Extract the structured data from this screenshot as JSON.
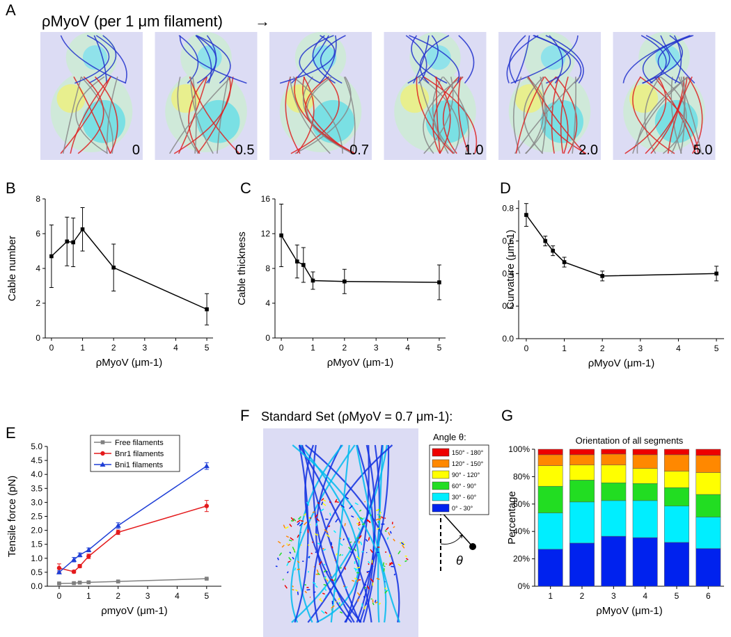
{
  "figure": {
    "panel_A": {
      "letter": "A",
      "title": "ρMyoV (per 1 μm filament)",
      "arrow": "→",
      "image_labels": [
        "0",
        "0.5",
        "0.7",
        "1.0",
        "2.0",
        "5.0"
      ]
    },
    "panel_F": {
      "letter": "F",
      "title": "Standard Set (ρMyoV = 0.7 μm-1):",
      "angle_symbol": "θ"
    }
  },
  "chart_data": [
    {
      "type": "line",
      "panel": "B",
      "x_label": "ρMyoV (μm-1)",
      "y_label": "Cable number",
      "x": [
        0,
        0.5,
        0.7,
        1,
        2,
        5
      ],
      "values": [
        4.7,
        5.55,
        5.5,
        6.25,
        4.05,
        1.65
      ],
      "errors": [
        1.8,
        1.4,
        1.4,
        1.25,
        1.35,
        0.9
      ],
      "color": "#000000",
      "marker": "square",
      "xlim": [
        -0.2,
        5.2
      ],
      "xticks": [
        0,
        1,
        2,
        3,
        4,
        5
      ],
      "ylim": [
        0,
        8
      ],
      "yticks": [
        0,
        2,
        4,
        6,
        8
      ]
    },
    {
      "type": "line",
      "panel": "C",
      "x_label": "ρMyoV (μm-1)",
      "y_label": "Cable thickness",
      "x": [
        0,
        0.5,
        0.7,
        1,
        2,
        5
      ],
      "values": [
        11.8,
        8.8,
        8.4,
        6.6,
        6.5,
        6.4
      ],
      "errors": [
        3.6,
        1.9,
        2.0,
        1.0,
        1.4,
        2.0
      ],
      "color": "#000000",
      "marker": "square",
      "xlim": [
        -0.2,
        5.2
      ],
      "xticks": [
        0,
        1,
        2,
        3,
        4,
        5
      ],
      "ylim": [
        0,
        16
      ],
      "yticks": [
        0,
        4,
        8,
        12,
        16
      ]
    },
    {
      "type": "line",
      "panel": "D",
      "x_label": "ρMyoV (μm-1)",
      "y_label": "Curvature (μm-1)",
      "x": [
        0,
        0.5,
        0.7,
        1,
        2,
        5
      ],
      "values": [
        0.76,
        0.6,
        0.54,
        0.47,
        0.385,
        0.4
      ],
      "errors": [
        0.07,
        0.03,
        0.03,
        0.03,
        0.03,
        0.045
      ],
      "color": "#000000",
      "marker": "square",
      "xlim": [
        -0.2,
        5.2
      ],
      "xticks": [
        0,
        1,
        2,
        3,
        4,
        5
      ],
      "ylim": [
        0,
        0.85
      ],
      "yticks": [
        {
          "value": 0,
          "label": "0.0"
        },
        0.2,
        0.4,
        0.6,
        0.8
      ]
    },
    {
      "type": "line",
      "panel": "E",
      "x_label": "ρmyoV (μm-1)",
      "y_label": "Tensile force (pN)",
      "legend": "upper left",
      "x": [
        0,
        0.5,
        0.7,
        1,
        2,
        5
      ],
      "series": [
        {
          "name": "Free filaments",
          "color": "#808080",
          "marker": "square",
          "values": [
            0.1,
            0.11,
            0.13,
            0.14,
            0.17,
            0.27
          ],
          "errors": [
            0.02,
            0.02,
            0.02,
            0.02,
            0.02,
            0.02
          ]
        },
        {
          "name": "Bnr1 filaments",
          "color": "#e41a1c",
          "marker": "circle",
          "values": [
            0.65,
            0.52,
            0.72,
            1.07,
            1.93,
            2.87
          ],
          "errors": [
            0.15,
            0.05,
            0.06,
            0.08,
            0.08,
            0.2
          ]
        },
        {
          "name": "Bni1 filaments",
          "color": "#1f3fd6",
          "marker": "triangle",
          "values": [
            0.5,
            0.95,
            1.12,
            1.3,
            2.17,
            4.3
          ],
          "errors": [
            0.05,
            0.08,
            0.07,
            0.07,
            0.1,
            0.12
          ]
        }
      ],
      "xlim": [
        -0.4,
        5.5
      ],
      "xticks": [
        0,
        1,
        2,
        3,
        4,
        5
      ],
      "ylim": [
        0,
        5
      ],
      "yticks": [
        {
          "value": 0,
          "label": "0.0"
        },
        0.5,
        {
          "value": 1,
          "label": "1.0"
        },
        1.5,
        {
          "value": 2,
          "label": "2.0"
        },
        2.5,
        {
          "value": 3,
          "label": "3.0"
        },
        3.5,
        {
          "value": 4,
          "label": "4.0"
        },
        4.5,
        {
          "value": 5,
          "label": "5.0"
        }
      ]
    },
    {
      "type": "stacked_bar",
      "panel": "G",
      "title": "Orientation of all segments",
      "x_label": "ρMyoV (μm-1)",
      "y_label": "Percentage",
      "legend_title": "Angle θ:",
      "categories": [
        "1",
        "2",
        "3",
        "4",
        "5",
        "6"
      ],
      "series": [
        {
          "name": "0° - 30°",
          "color": "#0022ee",
          "values": [
            27,
            31.5,
            36.5,
            35.5,
            32,
            27.5
          ]
        },
        {
          "name": "30° - 60°",
          "color": "#00eeff",
          "values": [
            26.5,
            30,
            26,
            27,
            26.5,
            23
          ]
        },
        {
          "name": "60° - 90°",
          "color": "#22dd22",
          "values": [
            19.5,
            16,
            13,
            12.5,
            13.5,
            16.5
          ]
        },
        {
          "name": "90° - 120°",
          "color": "#ffff00",
          "values": [
            15,
            11,
            13,
            11,
            12,
            16
          ]
        },
        {
          "name": "120° - 150°",
          "color": "#ff8800",
          "values": [
            8,
            7.5,
            8,
            10,
            12,
            12.5
          ]
        },
        {
          "name": "150° - 180°",
          "color": "#ee0000",
          "values": [
            4,
            4,
            3.5,
            4,
            4,
            4.5
          ]
        }
      ],
      "ylim": [
        0,
        100
      ],
      "yticks": [
        {
          "value": 0,
          "label": "0%"
        },
        {
          "value": 20,
          "label": "20%"
        },
        {
          "value": 40,
          "label": "40%"
        },
        {
          "value": 60,
          "label": "60%"
        },
        {
          "value": 80,
          "label": "80%"
        },
        {
          "value": 100,
          "label": "100%"
        }
      ]
    }
  ]
}
